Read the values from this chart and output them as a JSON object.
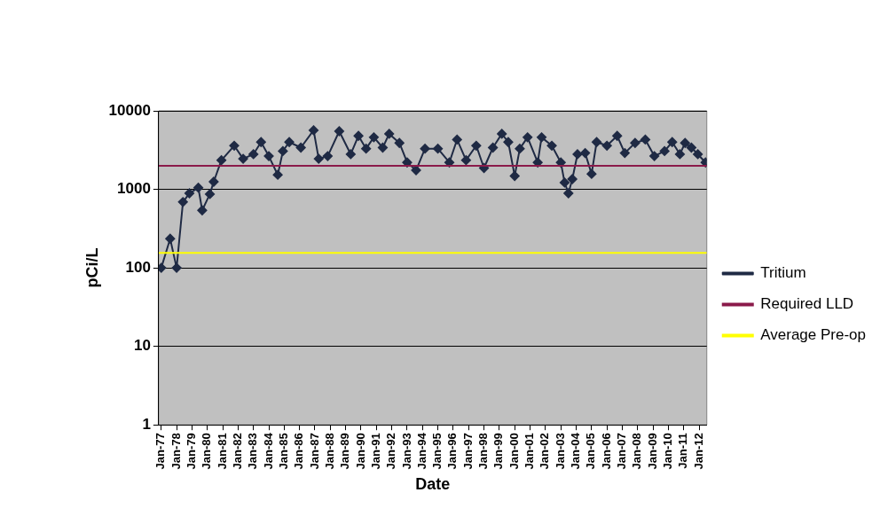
{
  "chart_data": {
    "type": "line",
    "xlabel": "Date",
    "ylabel": "pCi/L",
    "log": "y",
    "grid": "y",
    "legend": "right",
    "marker": "diamond",
    "x": [
      "1977-01",
      "1977-08",
      "1978-01",
      "1978-06",
      "1978-11",
      "1979-06",
      "1979-09",
      "1980-03",
      "1980-06",
      "1980-12",
      "1981-10",
      "1982-05",
      "1983-01",
      "1983-07",
      "1984-01",
      "1984-08",
      "1984-12",
      "1985-05",
      "1986-02",
      "1986-12",
      "1987-04",
      "1987-11",
      "1988-08",
      "1989-05",
      "1989-11",
      "1990-05",
      "1990-11",
      "1991-06",
      "1991-11",
      "1992-07",
      "1993-01",
      "1993-08",
      "1994-03",
      "1995-01",
      "1995-10",
      "1996-04",
      "1996-11",
      "1997-07",
      "1998-01",
      "1998-08",
      "1999-03",
      "1999-08",
      "2000-01",
      "2000-05",
      "2000-11",
      "2001-07",
      "2001-10",
      "2002-06",
      "2003-01",
      "2003-04",
      "2003-07",
      "2003-10",
      "2004-02",
      "2004-08",
      "2005-01",
      "2005-05",
      "2006-01",
      "2006-09",
      "2007-03",
      "2007-11",
      "2008-07",
      "2009-02",
      "2009-10",
      "2010-04",
      "2010-10",
      "2011-02",
      "2011-07",
      "2011-12",
      "2012-06"
    ],
    "series": [
      {
        "name": "Tritium",
        "color": "#1f2a44",
        "values": [
          100,
          235,
          100,
          690,
          890,
          1050,
          540,
          870,
          1250,
          2350,
          3600,
          2450,
          2800,
          4000,
          2650,
          1530,
          3070,
          4000,
          3400,
          5650,
          2450,
          2650,
          5500,
          2800,
          4800,
          3300,
          4600,
          3400,
          5100,
          3900,
          2200,
          1750,
          3300,
          3300,
          2200,
          4300,
          2350,
          3600,
          1870,
          3400,
          5100,
          4000,
          1480,
          3300,
          4600,
          2200,
          4600,
          3600,
          2200,
          1220,
          890,
          1350,
          2800,
          2900,
          1570,
          4000,
          3600,
          4800,
          2900,
          3900,
          4300,
          2650,
          3070,
          4000,
          2800,
          3900,
          3400,
          2800,
          2200
        ]
      }
    ],
    "ref_lines": [
      {
        "axis": "y",
        "value": 2000,
        "label": "Required LLD",
        "color": "#8b1a4a"
      },
      {
        "axis": "y",
        "value": 155,
        "label": "Average Pre-op",
        "color": "#ffff00"
      }
    ],
    "xlim": [
      "1976-11",
      "2012-07"
    ],
    "xticks": [
      {
        "value": "1977-01",
        "label": "Jan-77"
      },
      {
        "value": "1978-01",
        "label": "Jan-78"
      },
      {
        "value": "1979-01",
        "label": "Jan-79"
      },
      {
        "value": "1980-01",
        "label": "Jan-80"
      },
      {
        "value": "1981-01",
        "label": "Jan-81"
      },
      {
        "value": "1982-01",
        "label": "Jan-82"
      },
      {
        "value": "1983-01",
        "label": "Jan-83"
      },
      {
        "value": "1984-01",
        "label": "Jan-84"
      },
      {
        "value": "1985-01",
        "label": "Jan-85"
      },
      {
        "value": "1986-01",
        "label": "Jan-86"
      },
      {
        "value": "1987-01",
        "label": "Jan-87"
      },
      {
        "value": "1988-01",
        "label": "Jan-88"
      },
      {
        "value": "1989-01",
        "label": "Jan-89"
      },
      {
        "value": "1990-01",
        "label": "Jan-90"
      },
      {
        "value": "1991-01",
        "label": "Jan-91"
      },
      {
        "value": "1992-01",
        "label": "Jan-92"
      },
      {
        "value": "1993-01",
        "label": "Jan-93"
      },
      {
        "value": "1994-01",
        "label": "Jan-94"
      },
      {
        "value": "1995-01",
        "label": "Jan-95"
      },
      {
        "value": "1996-01",
        "label": "Jan-96"
      },
      {
        "value": "1997-01",
        "label": "Jan-97"
      },
      {
        "value": "1998-01",
        "label": "Jan-98"
      },
      {
        "value": "1999-01",
        "label": "Jan-99"
      },
      {
        "value": "2000-01",
        "label": "Jan-00"
      },
      {
        "value": "2001-01",
        "label": "Jan-01"
      },
      {
        "value": "2002-01",
        "label": "Jan-02"
      },
      {
        "value": "2003-01",
        "label": "Jan-03"
      },
      {
        "value": "2004-01",
        "label": "Jan-04"
      },
      {
        "value": "2005-01",
        "label": "Jan-05"
      },
      {
        "value": "2006-01",
        "label": "Jan-06"
      },
      {
        "value": "2007-01",
        "label": "Jan-07"
      },
      {
        "value": "2008-01",
        "label": "Jan-08"
      },
      {
        "value": "2009-01",
        "label": "Jan-09"
      },
      {
        "value": "2010-01",
        "label": "Jan-10"
      },
      {
        "value": "2011-01",
        "label": "Jan-11"
      },
      {
        "value": "2012-01",
        "label": "Jan-12"
      }
    ],
    "ylim": [
      1,
      10000
    ],
    "yticks": [
      1,
      10,
      100,
      1000,
      10000
    ]
  }
}
